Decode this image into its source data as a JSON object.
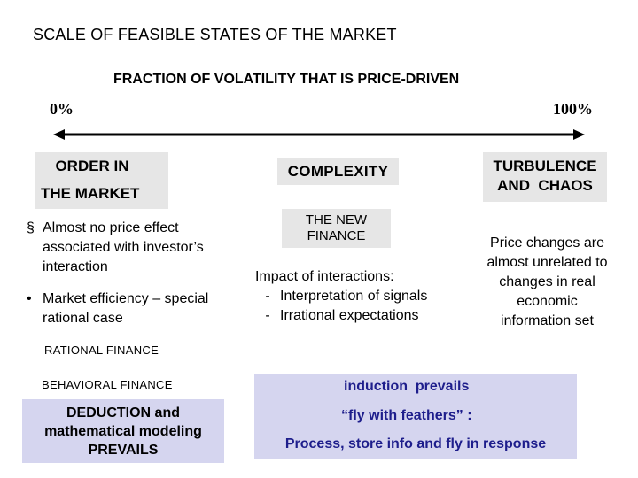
{
  "title": "SCALE OF FEASIBLE STATES OF THE MARKET",
  "subtitle": "FRACTION OF VOLATILITY THAT IS PRICE-DRIVEN",
  "scale": {
    "left_label": "0%",
    "right_label": "100%"
  },
  "left_column": {
    "heading_line1": "ORDER IN",
    "heading_line2": "THE MARKET",
    "bullets": [
      {
        "marker": "§",
        "text": "Almost no price effect associated with investor’s interaction"
      },
      {
        "marker": "•",
        "text": "Market efficiency – special rational case"
      }
    ],
    "rational_label": "RATIONAL FINANCE",
    "behavioral_label": "BEHAVIORAL FINANCE",
    "deduction_text": "DEDUCTION and mathematical modeling PREVAILS"
  },
  "middle_column": {
    "heading": "COMPLEXITY",
    "new_finance": "THE NEW FINANCE",
    "impact_title": "Impact of interactions:",
    "impact_items": [
      {
        "marker": "-",
        "text": "Interpretation of signals"
      },
      {
        "marker": "-",
        "text": "Irrational expectations"
      }
    ]
  },
  "right_column": {
    "heading_line1": "TURBULENCE",
    "heading_line2": "AND  CHAOS",
    "description": "Price changes are almost unrelated to changes in real economic information set"
  },
  "bottom_panel": {
    "line1": "induction  prevails",
    "line2": "“fly with feathers” :",
    "line3": "Process, store info and fly in response"
  },
  "colors": {
    "gray_box": "#e6e6e6",
    "lavender_box": "#d5d5ef",
    "bottom_text": "#1e1e8c"
  }
}
